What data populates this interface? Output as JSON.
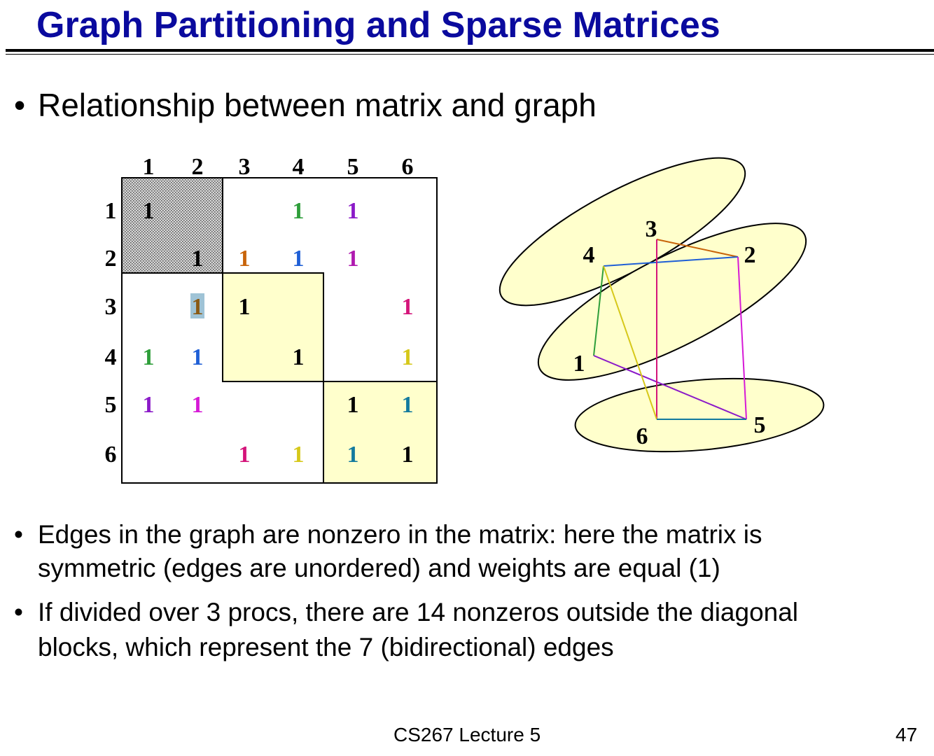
{
  "slide": {
    "title": "Graph Partitioning and Sparse Matrices",
    "bullets": {
      "intro": "Relationship between matrix and graph",
      "edges_line1": "Edges in the graph are nonzero in the matrix: here the matrix is",
      "edges_line2": "symmetric (edges are unordered) and weights are equal (1)",
      "procs_line1": "If divided over 3 procs, there are 14 nonzeros outside the diagonal",
      "procs_line2": "blocks, which represent the 7 (bidirectional) edges"
    },
    "bullet_glyph": "•",
    "footer": {
      "course": "CS267 Lecture 5",
      "page": "47"
    }
  },
  "matrix": {
    "col_labels": [
      "1",
      "2",
      "3",
      "4",
      "5",
      "6"
    ],
    "row_labels": [
      "1",
      "2",
      "3",
      "4",
      "5",
      "6"
    ],
    "entries": [
      {
        "row": 1,
        "col": 1,
        "value": "1",
        "color": "#000000"
      },
      {
        "row": 1,
        "col": 4,
        "value": "1",
        "color": "#2e9e3a"
      },
      {
        "row": 1,
        "col": 5,
        "value": "1",
        "color": "#8b1ac8"
      },
      {
        "row": 2,
        "col": 2,
        "value": "1",
        "color": "#000000"
      },
      {
        "row": 2,
        "col": 3,
        "value": "1",
        "color": "#c8640a"
      },
      {
        "row": 2,
        "col": 4,
        "value": "1",
        "color": "#1f5fd6"
      },
      {
        "row": 2,
        "col": 5,
        "value": "1",
        "color": "#b01ab0"
      },
      {
        "row": 3,
        "col": 2,
        "value": "1",
        "color": "#8a5a14",
        "highlight": "#9fc3d6"
      },
      {
        "row": 3,
        "col": 3,
        "value": "1",
        "color": "#000000"
      },
      {
        "row": 3,
        "col": 6,
        "value": "1",
        "color": "#d4147a"
      },
      {
        "row": 4,
        "col": 1,
        "value": "1",
        "color": "#2e9e3a"
      },
      {
        "row": 4,
        "col": 2,
        "value": "1",
        "color": "#1f5fd6"
      },
      {
        "row": 4,
        "col": 4,
        "value": "1",
        "color": "#000000"
      },
      {
        "row": 4,
        "col": 6,
        "value": "1",
        "color": "#d6c81a"
      },
      {
        "row": 5,
        "col": 1,
        "value": "1",
        "color": "#8b1ac8"
      },
      {
        "row": 5,
        "col": 2,
        "value": "1",
        "color": "#d61ad6"
      },
      {
        "row": 5,
        "col": 5,
        "value": "1",
        "color": "#000000"
      },
      {
        "row": 5,
        "col": 6,
        "value": "1",
        "color": "#137a9e"
      },
      {
        "row": 6,
        "col": 3,
        "value": "1",
        "color": "#d4147a"
      },
      {
        "row": 6,
        "col": 4,
        "value": "1",
        "color": "#d6c81a"
      },
      {
        "row": 6,
        "col": 5,
        "value": "1",
        "color": "#137a9e"
      },
      {
        "row": 6,
        "col": 6,
        "value": "1",
        "color": "#000000"
      }
    ],
    "diagonal_blocks": [
      {
        "rows": [
          1,
          2
        ],
        "cols": [
          1,
          2
        ],
        "style": "stippled"
      },
      {
        "rows": [
          3,
          4
        ],
        "cols": [
          3,
          4
        ],
        "style": "yellow"
      },
      {
        "rows": [
          5,
          6
        ],
        "cols": [
          5,
          6
        ],
        "style": "yellow"
      }
    ],
    "block_fill": "#ffffcc"
  },
  "graph": {
    "nodes": [
      "1",
      "2",
      "3",
      "4",
      "5",
      "6"
    ],
    "edges": [
      {
        "from": "1",
        "to": "4",
        "color": "#2e9e3a"
      },
      {
        "from": "1",
        "to": "5",
        "color": "#8b1ac8"
      },
      {
        "from": "2",
        "to": "3",
        "color": "#c8640a"
      },
      {
        "from": "2",
        "to": "4",
        "color": "#1f5fd6"
      },
      {
        "from": "2",
        "to": "5",
        "color": "#d61ad6"
      },
      {
        "from": "3",
        "to": "6",
        "color": "#d4147a"
      },
      {
        "from": "4",
        "to": "6",
        "color": "#d6c81a"
      },
      {
        "from": "5",
        "to": "6",
        "color": "#137a9e"
      }
    ],
    "partitions": [
      [
        "3",
        "4"
      ],
      [
        "1",
        "2"
      ],
      [
        "5",
        "6"
      ]
    ],
    "partition_fill": "#ffffcc"
  }
}
